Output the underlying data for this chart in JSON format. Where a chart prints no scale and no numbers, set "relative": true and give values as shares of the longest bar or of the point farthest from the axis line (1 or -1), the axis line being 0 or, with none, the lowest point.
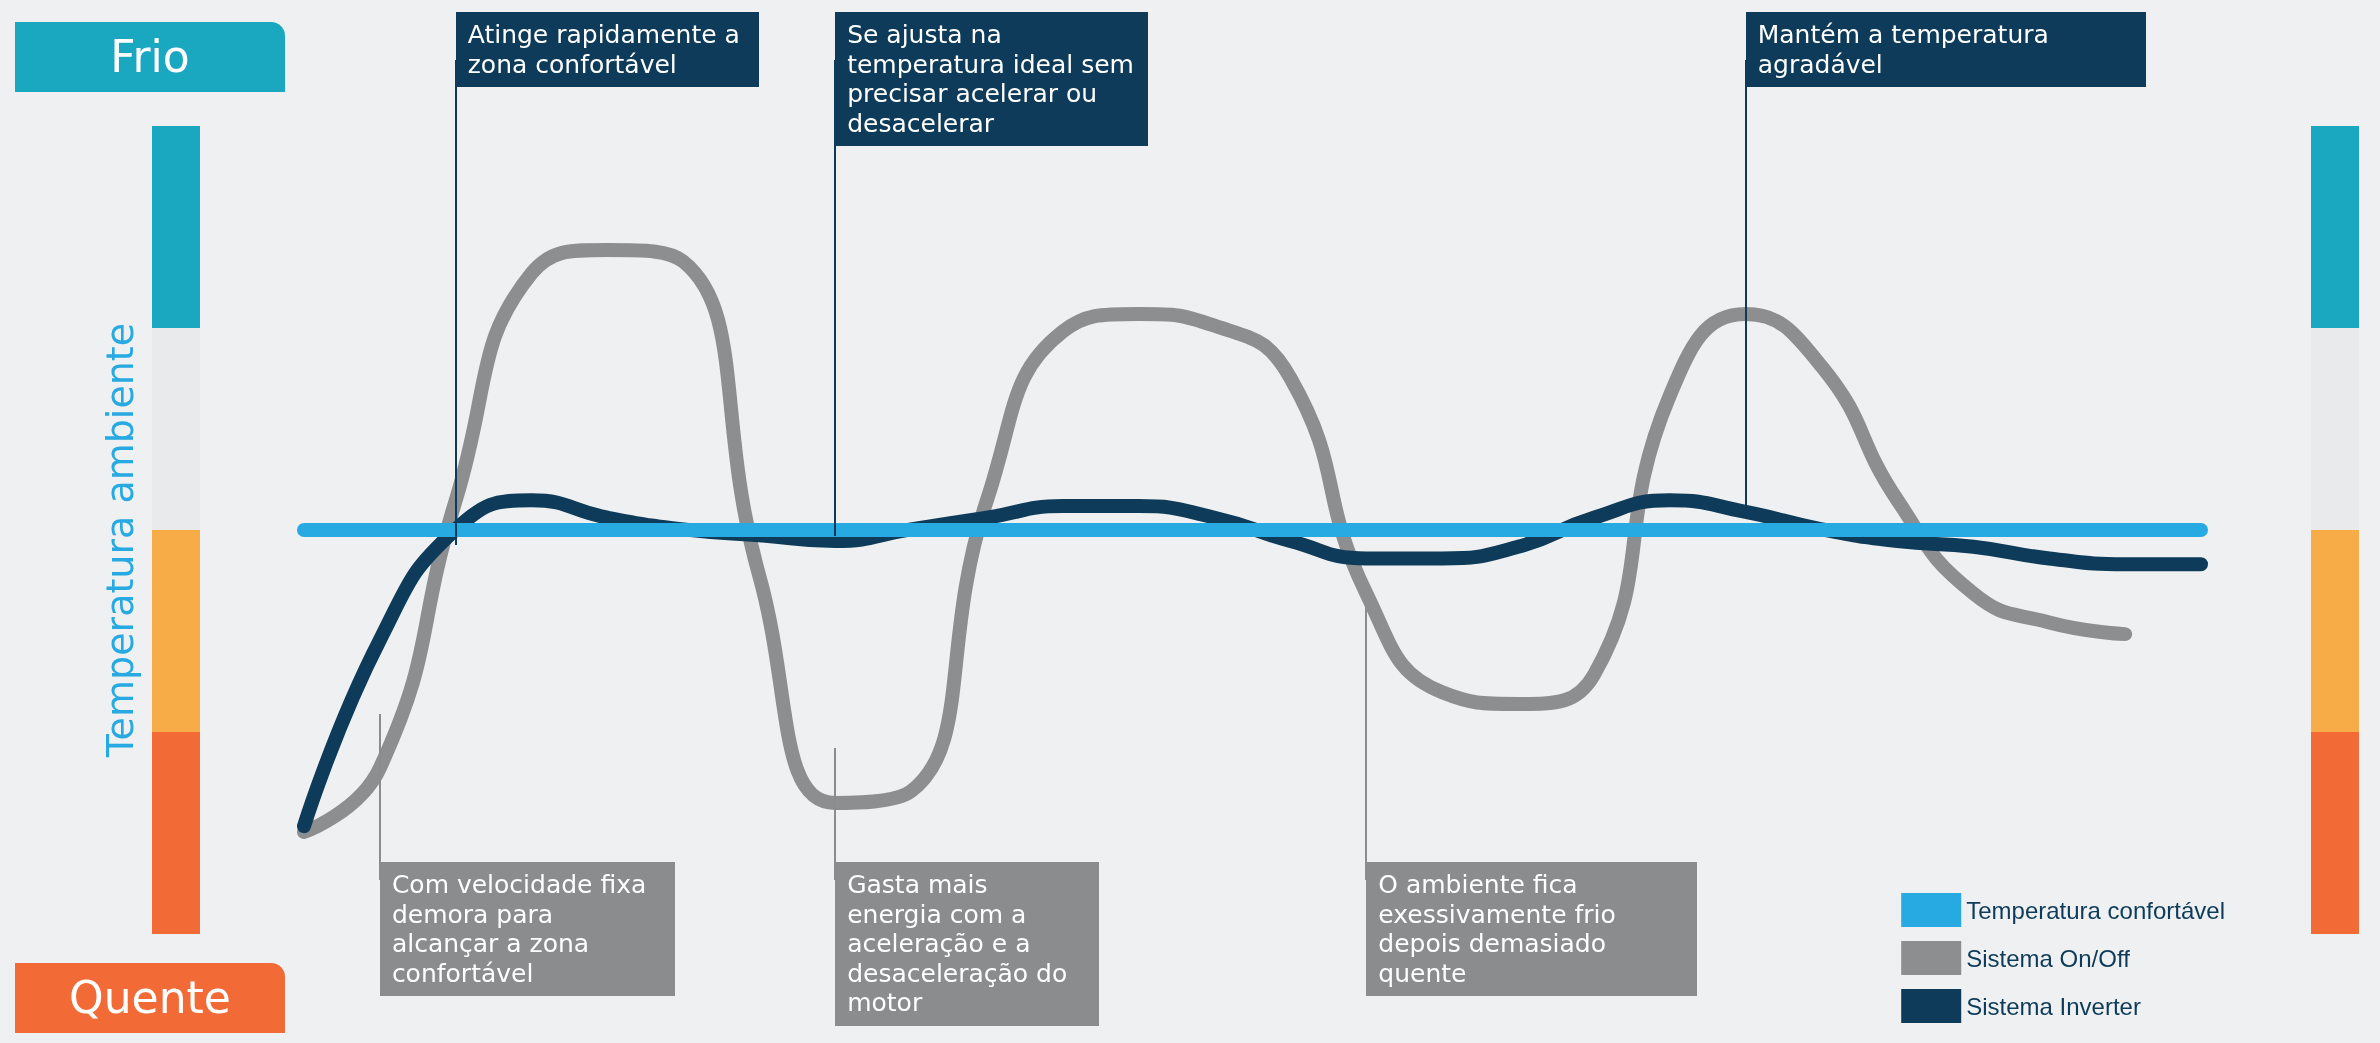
{
  "chart_data": {
    "type": "line",
    "relative": true,
    "ylabel": "Temperatura ambiente",
    "categories": [
      null,
      null,
      null,
      null,
      null,
      null,
      null,
      null,
      null,
      null,
      null,
      null,
      null,
      null,
      null,
      null,
      null,
      null,
      null,
      null,
      null,
      null,
      null,
      null,
      null,
      null
    ],
    "series": [
      {
        "name": "Sistema On/Off",
        "color": "#8c8e90",
        "values": [
          0,
          0.11,
          0.57,
          0.96,
          1,
          0.98,
          0.44,
          0.05,
          0.07,
          0.57,
          0.86,
          0.89,
          0.87,
          0.78,
          0.41,
          0.24,
          0.22,
          0.27,
          0.75,
          0.89,
          0.8,
          0.57,
          0.41,
          0.36,
          0.34,
          null
        ]
      },
      {
        "name": "Sistema Inverter",
        "color": "#0d3b59",
        "values": [
          0.01,
          0.33,
          0.52,
          0.57,
          0.54,
          0.52,
          0.51,
          0.5,
          0.52,
          0.54,
          0.56,
          0.56,
          0.54,
          0.5,
          0.47,
          0.47,
          0.49,
          0.54,
          0.57,
          0.55,
          0.52,
          0.5,
          0.49,
          0.47,
          0.46,
          0.46
        ]
      }
    ],
    "annotations": [
      "Frio",
      "Quente",
      "Atinge rapidamente a zona confortável",
      "Se ajusta na temperatura ideal sem precisar acelerar ou desacelerar",
      "Mantém a temperatura agradável",
      "Com velocidade fixa demora para alcançar a zona confortável",
      "Gasta mais energia com a aceleração e a desaceleração do motor",
      "O ambiente fica exessivamente frio depois demasiado quente"
    ],
    "ref_lines": [
      {
        "axis": "y",
        "value": 0.52,
        "label": "Temperatura confortável",
        "color": "#27a9e1"
      }
    ],
    "legend": "bottom right",
    "grid": false,
    "line_style": "solid"
  }
}
